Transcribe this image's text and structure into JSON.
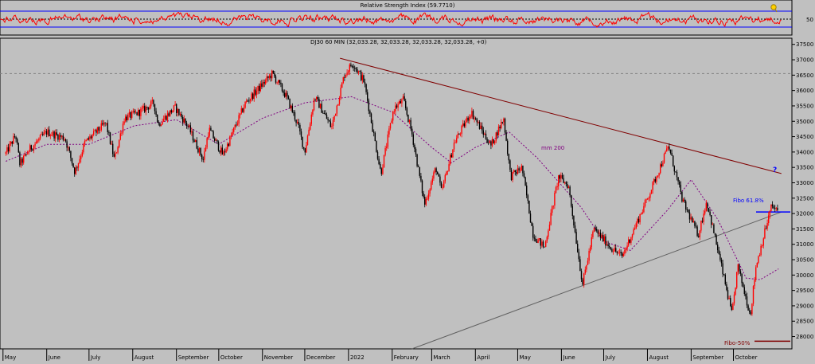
{
  "rsi_panel": {
    "title": "Relative Strength Index (59.7710)",
    "level_label": "50",
    "colors": {
      "line": "#ff0000",
      "bands": "#0000ff",
      "midline": "#000000"
    }
  },
  "price_panel": {
    "header": "DJ30 60 MIN (32,033.28, 32,033.28, 32,033.28, 32,033.28, +0)",
    "annotations": {
      "ma_label": "mm 200",
      "fibo_618": "Fibo 61.8%",
      "fibo_50": "Fibo-50%",
      "question": "?"
    },
    "colors": {
      "bull": "#ff0000",
      "bear": "#000000",
      "ma": "#800080",
      "resistance": "#800000",
      "support": "#606060",
      "fibo_618": "#0000ff",
      "fibo_50": "#800000",
      "dashed_level": "#808080"
    }
  },
  "chart_data": [
    {
      "type": "line",
      "title": "Relative Strength Index (59.7710)",
      "series": [
        {
          "name": "Relative Strength Index",
          "last_value": 59.771
        }
      ],
      "y_ticks": [
        50
      ],
      "reference_levels": [
        30,
        50,
        70
      ]
    },
    {
      "type": "line",
      "title": "DJ30 60 MIN (32,033.28, 32,033.28, 32,033.28, 32,033.28, +0)",
      "x_ticks": [
        "May",
        "June",
        "July",
        "August",
        "September",
        "October",
        "November",
        "December",
        "2022",
        "February",
        "March",
        "April",
        "May",
        "June",
        "July",
        "August",
        "September",
        "October"
      ],
      "y_ticks": [
        28000,
        28500,
        29000,
        29500,
        30000,
        30500,
        31000,
        31500,
        32000,
        32500,
        33000,
        33500,
        34000,
        34500,
        35000,
        35500,
        36000,
        36500,
        37000,
        37500
      ],
      "ylim": [
        27600,
        37700
      ],
      "grid": false,
      "last_close": 32033.28,
      "price_path": [
        {
          "x": "2021-05-03",
          "y": 33950
        },
        {
          "x": "2021-05-10",
          "y": 34550
        },
        {
          "x": "2021-05-13",
          "y": 33600
        },
        {
          "x": "2021-05-20",
          "y": 34100
        },
        {
          "x": "2021-06-01",
          "y": 34650
        },
        {
          "x": "2021-06-14",
          "y": 34450
        },
        {
          "x": "2021-06-21",
          "y": 33350
        },
        {
          "x": "2021-06-28",
          "y": 34300
        },
        {
          "x": "2021-07-13",
          "y": 34950
        },
        {
          "x": "2021-07-19",
          "y": 33750
        },
        {
          "x": "2021-07-26",
          "y": 35100
        },
        {
          "x": "2021-08-06",
          "y": 35300
        },
        {
          "x": "2021-08-16",
          "y": 35600
        },
        {
          "x": "2021-08-19",
          "y": 34900
        },
        {
          "x": "2021-08-31",
          "y": 35450
        },
        {
          "x": "2021-09-09",
          "y": 34850
        },
        {
          "x": "2021-09-20",
          "y": 33750
        },
        {
          "x": "2021-09-24",
          "y": 34750
        },
        {
          "x": "2021-10-04",
          "y": 33900
        },
        {
          "x": "2021-10-20",
          "y": 35600
        },
        {
          "x": "2021-11-08",
          "y": 36550
        },
        {
          "x": "2021-11-18",
          "y": 35800
        },
        {
          "x": "2021-11-26",
          "y": 34900
        },
        {
          "x": "2021-12-01",
          "y": 34000
        },
        {
          "x": "2021-12-08",
          "y": 35800
        },
        {
          "x": "2021-12-20",
          "y": 34800
        },
        {
          "x": "2021-12-29",
          "y": 36500
        },
        {
          "x": "2022-01-04",
          "y": 36900
        },
        {
          "x": "2022-01-12",
          "y": 36300
        },
        {
          "x": "2022-01-24",
          "y": 33300
        },
        {
          "x": "2022-02-02",
          "y": 35400
        },
        {
          "x": "2022-02-09",
          "y": 35700
        },
        {
          "x": "2022-02-15",
          "y": 34600
        },
        {
          "x": "2022-02-24",
          "y": 32300
        },
        {
          "x": "2022-03-04",
          "y": 33500
        },
        {
          "x": "2022-03-08",
          "y": 32700
        },
        {
          "x": "2022-03-17",
          "y": 34300
        },
        {
          "x": "2022-03-29",
          "y": 35300
        },
        {
          "x": "2022-04-12",
          "y": 34200
        },
        {
          "x": "2022-04-21",
          "y": 35100
        },
        {
          "x": "2022-04-26",
          "y": 33200
        },
        {
          "x": "2022-05-04",
          "y": 33500
        },
        {
          "x": "2022-05-12",
          "y": 31300
        },
        {
          "x": "2022-05-20",
          "y": 30900
        },
        {
          "x": "2022-05-30",
          "y": 33200
        },
        {
          "x": "2022-06-06",
          "y": 32900
        },
        {
          "x": "2022-06-16",
          "y": 29700
        },
        {
          "x": "2022-06-24",
          "y": 31500
        },
        {
          "x": "2022-07-06",
          "y": 30900
        },
        {
          "x": "2022-07-14",
          "y": 30600
        },
        {
          "x": "2022-08-02",
          "y": 32600
        },
        {
          "x": "2022-08-16",
          "y": 34200
        },
        {
          "x": "2022-08-26",
          "y": 32400
        },
        {
          "x": "2022-09-06",
          "y": 31300
        },
        {
          "x": "2022-09-12",
          "y": 32400
        },
        {
          "x": "2022-09-20",
          "y": 30800
        },
        {
          "x": "2022-09-30",
          "y": 28700
        },
        {
          "x": "2022-10-04",
          "y": 30300
        },
        {
          "x": "2022-10-13",
          "y": 28700
        },
        {
          "x": "2022-10-17",
          "y": 30300
        },
        {
          "x": "2022-10-28",
          "y": 32250
        },
        {
          "x": "2022-11-02",
          "y": 32033
        }
      ],
      "series": [
        {
          "name": "mm 200",
          "values": [
            {
              "x": "2021-05-03",
              "y": 33700
            },
            {
              "x": "2021-06-01",
              "y": 34250
            },
            {
              "x": "2021-07-01",
              "y": 34250
            },
            {
              "x": "2021-08-02",
              "y": 34850
            },
            {
              "x": "2021-09-01",
              "y": 35050
            },
            {
              "x": "2021-10-01",
              "y": 34250
            },
            {
              "x": "2021-11-01",
              "y": 35100
            },
            {
              "x": "2021-12-01",
              "y": 35600
            },
            {
              "x": "2022-01-03",
              "y": 35800
            },
            {
              "x": "2022-02-01",
              "y": 35300
            },
            {
              "x": "2022-03-01",
              "y": 34150
            },
            {
              "x": "2022-03-15",
              "y": 33650
            },
            {
              "x": "2022-04-01",
              "y": 34150
            },
            {
              "x": "2022-04-25",
              "y": 34650
            },
            {
              "x": "2022-05-15",
              "y": 33800
            },
            {
              "x": "2022-06-15",
              "y": 32200
            },
            {
              "x": "2022-07-01",
              "y": 31100
            },
            {
              "x": "2022-07-20",
              "y": 30800
            },
            {
              "x": "2022-08-15",
              "y": 32100
            },
            {
              "x": "2022-09-01",
              "y": 33100
            },
            {
              "x": "2022-09-20",
              "y": 31800
            },
            {
              "x": "2022-10-10",
              "y": 29900
            },
            {
              "x": "2022-10-20",
              "y": 29850
            },
            {
              "x": "2022-11-02",
              "y": 30200
            }
          ]
        }
      ],
      "reference_lines": [
        {
          "from": {
            "x": "2021-12-26",
            "y": 37050
          },
          "to": {
            "x": "2022-11-04",
            "y": 33300
          }
        },
        {
          "from": {
            "x": "2022-02-15",
            "y": 27600
          },
          "to": {
            "x": "2022-11-04",
            "y": 32050
          }
        }
      ],
      "levels": [
        {
          "label": "Fibo 61.8%",
          "y": 32050
        },
        {
          "label": "Fibo-50%",
          "y": 27850
        },
        {
          "label": "",
          "y": 36550
        }
      ]
    }
  ]
}
